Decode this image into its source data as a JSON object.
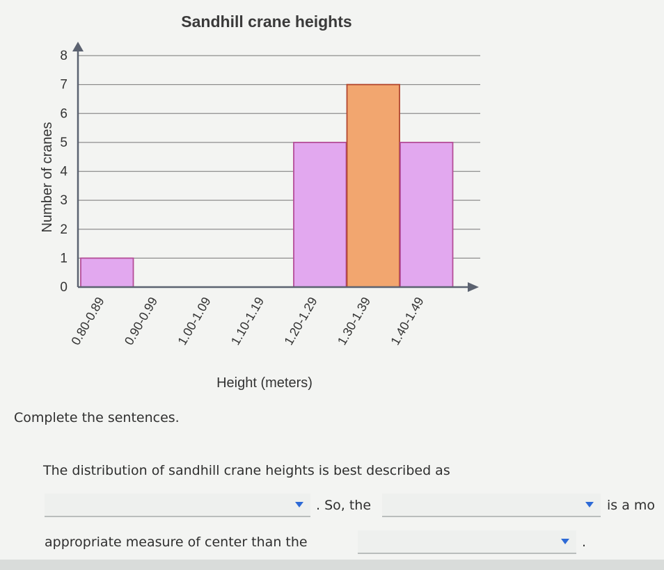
{
  "chart_data": {
    "type": "bar",
    "title": "Sandhill crane heights",
    "xlabel": "Height (meters)",
    "ylabel": "Number of cranes",
    "categories": [
      "0.80-0.89",
      "0.90-0.99",
      "1.00-1.09",
      "1.10-1.19",
      "1.20-1.29",
      "1.30-1.39",
      "1.40-1.49"
    ],
    "values": [
      1,
      0,
      0,
      0,
      5,
      7,
      5
    ],
    "y_ticks": [
      "0",
      "1",
      "2",
      "3",
      "4",
      "5",
      "6",
      "7",
      "8"
    ],
    "ylim": [
      0,
      8
    ],
    "grid": true,
    "colors": {
      "default_bar": "#e2a8ef",
      "default_bar_stroke": "#b44d97",
      "highlight_bar": "#f2a66f",
      "highlight_bar_stroke": "#b2462f",
      "grid": "#8d8d8d",
      "axis": "#5b6270"
    },
    "highlight_index": 5
  },
  "instructions": "Complete the sentences.",
  "sentence": {
    "part1": "The distribution of sandhill crane heights is best described as",
    "part2": ". So, the",
    "part3": "is a mo",
    "part4": "appropriate measure of center than the",
    "part5": "."
  },
  "dropdowns": {
    "distribution": "",
    "measure_1": "",
    "measure_2": ""
  }
}
